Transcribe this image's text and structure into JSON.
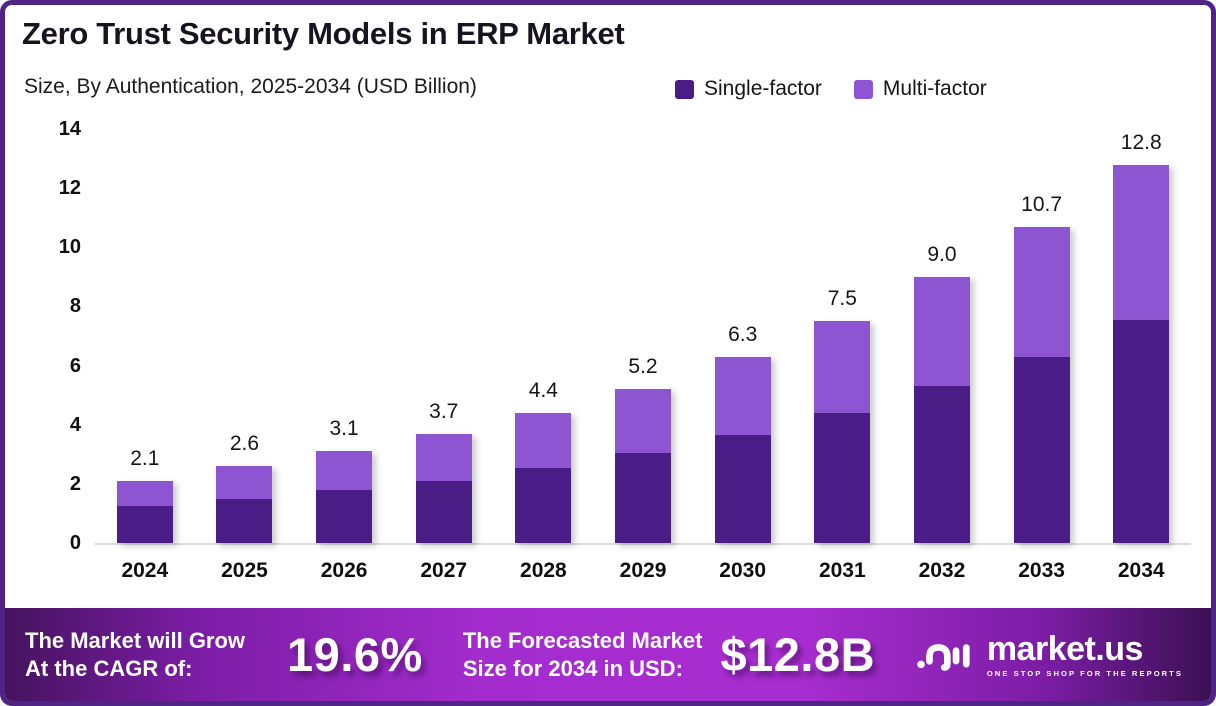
{
  "header": {
    "title": "Zero Trust Security Models in ERP Market",
    "subtitle": "Size, By Authentication, 2025-2034 (USD Billion)"
  },
  "colors": {
    "single_factor": "#4A1D86",
    "multi_factor": "#8E55D2",
    "border": "#4F2484",
    "footer_center": "#A42CCE",
    "footer_edge": "#45135E"
  },
  "chart_data": {
    "type": "bar",
    "stacked": true,
    "title": "Zero Trust Security Models in ERP Market",
    "xlabel": "",
    "ylabel": "",
    "categories": [
      "2024",
      "2025",
      "2026",
      "2027",
      "2028",
      "2029",
      "2030",
      "2031",
      "2032",
      "2033",
      "2034"
    ],
    "series": [
      {
        "name": "Single-factor",
        "color": "#4A1D86",
        "values": [
          1.25,
          1.5,
          1.8,
          2.1,
          2.55,
          3.05,
          3.65,
          4.4,
          5.3,
          6.3,
          7.55
        ]
      },
      {
        "name": "Multi-factor",
        "color": "#8E55D2",
        "values": [
          0.85,
          1.1,
          1.3,
          1.6,
          1.85,
          2.15,
          2.65,
          3.1,
          3.7,
          4.4,
          5.25
        ]
      }
    ],
    "totals": [
      2.1,
      2.6,
      3.1,
      3.7,
      4.4,
      5.2,
      6.3,
      7.5,
      9.0,
      10.7,
      12.8
    ],
    "total_labels": [
      "2.1",
      "2.6",
      "3.1",
      "3.7",
      "4.4",
      "5.2",
      "6.3",
      "7.5",
      "9.0",
      "10.7",
      "12.8"
    ],
    "ylim": [
      0,
      14
    ],
    "yticks": [
      0,
      2,
      4,
      6,
      8,
      10,
      12,
      14
    ],
    "grid": false,
    "legend_position": "top-right"
  },
  "legend": [
    {
      "label": "Single-factor",
      "color": "#4A1D86"
    },
    {
      "label": "Multi-factor",
      "color": "#8E55D2"
    }
  ],
  "footer": {
    "cagr_caption_line1": "The Market will Grow",
    "cagr_caption_line2": "At the CAGR of:",
    "cagr_value": "19.6%",
    "forecast_caption_line1": "The Forecasted Market",
    "forecast_caption_line2": "Size for 2034 in USD:",
    "forecast_value": "$12.8B",
    "logo": {
      "icon": "market-us-logo-mark",
      "name": "market.us",
      "tagline": "ONE STOP SHOP FOR THE REPORTS"
    }
  }
}
